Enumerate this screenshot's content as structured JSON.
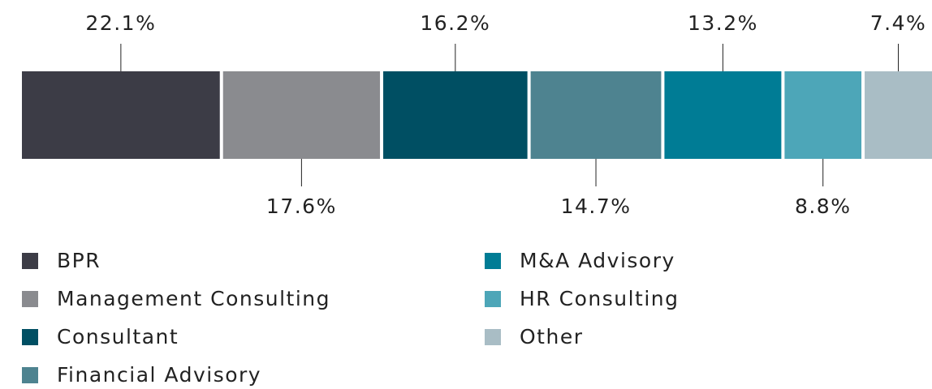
{
  "chart_data": {
    "type": "stacked_bar",
    "orientation": "horizontal",
    "series": [
      {
        "name": "BPR",
        "color": "#3c3c46",
        "values": [
          22.1
        ],
        "value_labels": [
          "22.1%"
        ]
      },
      {
        "name": "Management Consulting",
        "color": "#8a8b8f",
        "values": [
          17.6
        ],
        "value_labels": [
          "17.6%"
        ]
      },
      {
        "name": "Consultant",
        "color": "#004f63",
        "values": [
          16.2
        ],
        "value_labels": [
          "16.2%"
        ]
      },
      {
        "name": "Financial Advisory",
        "color": "#4e8390",
        "values": [
          14.7
        ],
        "value_labels": [
          "14.7%"
        ]
      },
      {
        "name": "M&A Advisory",
        "color": "#007c95",
        "values": [
          13.2
        ],
        "value_labels": [
          "13.2%"
        ]
      },
      {
        "name": "HR Consulting",
        "color": "#4da6b8",
        "values": [
          8.8
        ],
        "value_labels": [
          "8.8%"
        ]
      },
      {
        "name": "Other",
        "color": "#a9bdc5",
        "values": [
          7.4
        ],
        "value_labels": [
          "7.4%"
        ]
      }
    ]
  }
}
